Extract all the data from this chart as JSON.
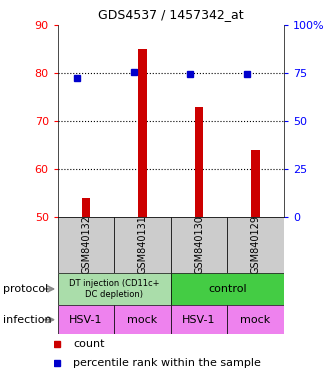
{
  "title": "GDS4537 / 1457342_at",
  "samples": [
    "GSM840132",
    "GSM840131",
    "GSM840130",
    "GSM840129"
  ],
  "counts": [
    54,
    85,
    73,
    64
  ],
  "percentile_ranks": [
    72.5,
    75.5,
    74.5,
    74.5
  ],
  "ylim_left": [
    50,
    90
  ],
  "ylim_right": [
    0,
    100
  ],
  "yticks_left": [
    50,
    60,
    70,
    80,
    90
  ],
  "yticks_right": [
    0,
    25,
    50,
    75,
    100
  ],
  "ytick_labels_right": [
    "0",
    "25",
    "50",
    "75",
    "100%"
  ],
  "bar_color": "#cc0000",
  "dot_color": "#0000cc",
  "infection_labels": [
    "HSV-1",
    "mock",
    "HSV-1",
    "mock"
  ],
  "infection_color": "#ee82ee",
  "protocol_left_color": "#aaddaa",
  "protocol_right_color": "#44cc44",
  "label_area_color": "#cccccc",
  "bar_width": 0.15
}
